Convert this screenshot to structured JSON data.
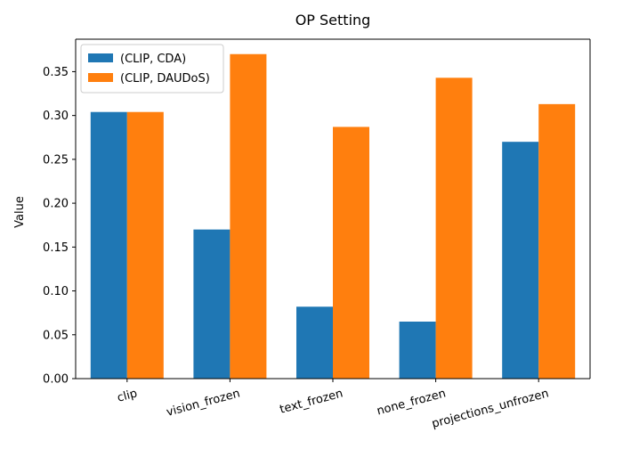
{
  "chart_data": {
    "type": "bar",
    "title": "OP Setting",
    "xlabel": "",
    "ylabel": "Value",
    "categories": [
      "clip",
      "vision_frozen",
      "text_frozen",
      "none_frozen",
      "projections_unfrozen"
    ],
    "series": [
      {
        "name": "(CLIP, CDA)",
        "color": "#1f77b4",
        "values": [
          0.304,
          0.17,
          0.082,
          0.065,
          0.27
        ]
      },
      {
        "name": "(CLIP, DAUDoS)",
        "color": "#ff7f0e",
        "values": [
          0.304,
          0.37,
          0.287,
          0.343,
          0.313
        ]
      }
    ],
    "ylim": [
      0,
      0.387
    ],
    "yticks": [
      "0.00",
      "0.05",
      "0.10",
      "0.15",
      "0.20",
      "0.25",
      "0.30",
      "0.35"
    ],
    "grid": false,
    "legend_position": "top-left",
    "x_tick_rotation": "rotated"
  }
}
